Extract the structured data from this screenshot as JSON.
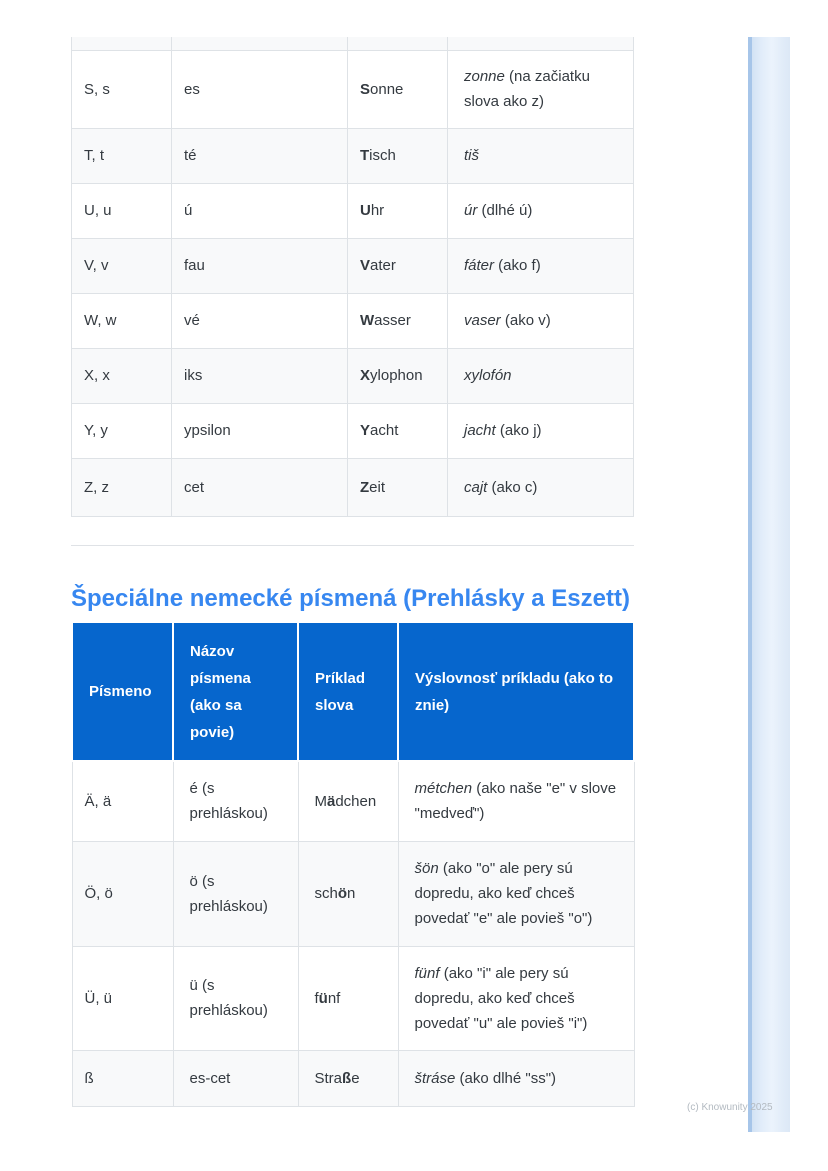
{
  "page": {
    "footer": "(c) Knowunity 2025",
    "colors": {
      "header_bg": "#0666cd",
      "heading_text": "#3787f0",
      "stripe_bg": "#f8f9fa",
      "table_border": "#dee2e6",
      "body_text": "#343a40",
      "page_edge_fill": "#e2edfa",
      "page_edge_line": "#a6c5e9"
    }
  },
  "special_section": {
    "heading": "Špeciálne nemecké písmená (Prehlásky a Eszett)"
  },
  "alphabet_table": {
    "rows": [
      [
        "S, s",
        "es",
        [
          {
            "t": "S",
            "b": 1
          },
          {
            "t": "onne"
          }
        ],
        [
          {
            "t": "zonne",
            "i": 1
          },
          {
            "t": " (na začiatku slova ako z)"
          }
        ]
      ],
      [
        "T, t",
        "té",
        [
          {
            "t": "T",
            "b": 1
          },
          {
            "t": "isch"
          }
        ],
        [
          {
            "t": "tiš",
            "i": 1
          }
        ]
      ],
      [
        "U, u",
        "ú",
        [
          {
            "t": "U",
            "b": 1
          },
          {
            "t": "hr"
          }
        ],
        [
          {
            "t": "úr",
            "i": 1
          },
          {
            "t": " (dlhé ú)"
          }
        ]
      ],
      [
        "V, v",
        "fau",
        [
          {
            "t": "V",
            "b": 1
          },
          {
            "t": "ater"
          }
        ],
        [
          {
            "t": "fáter",
            "i": 1
          },
          {
            "t": " (ako f)"
          }
        ]
      ],
      [
        "W, w",
        "vé",
        [
          {
            "t": "W",
            "b": 1
          },
          {
            "t": "asser"
          }
        ],
        [
          {
            "t": "vaser",
            "i": 1
          },
          {
            "t": " (ako v)"
          }
        ]
      ],
      [
        "X, x",
        "iks",
        [
          {
            "t": "X",
            "b": 1
          },
          {
            "t": "ylophon"
          }
        ],
        [
          {
            "t": "xylofón",
            "i": 1
          }
        ]
      ],
      [
        "Y, y",
        "ypsilon",
        [
          {
            "t": "Y",
            "b": 1
          },
          {
            "t": "acht"
          }
        ],
        [
          {
            "t": "jacht",
            "i": 1
          },
          {
            "t": " (ako j)"
          }
        ]
      ],
      [
        "Z, z",
        "cet",
        [
          {
            "t": "Z",
            "b": 1
          },
          {
            "t": "eit"
          }
        ],
        [
          {
            "t": "cajt",
            "i": 1
          },
          {
            "t": " (ako c)"
          }
        ]
      ]
    ]
  },
  "special_table": {
    "header": [
      "Písmeno",
      "Názov písmena (ako sa povie)",
      "Príklad slova",
      "Výslovnosť príkladu (ako to znie)"
    ],
    "rows": [
      [
        "Ä, ä",
        "é (s prehláskou)",
        [
          {
            "t": "M"
          },
          {
            "t": "ä",
            "b": 1
          },
          {
            "t": "dchen"
          }
        ],
        [
          {
            "t": "métchen",
            "i": 1
          },
          {
            "t": " (ako naše \"e\" v slove \"medveď\")"
          }
        ]
      ],
      [
        "Ö, ö",
        "ö (s prehláskou)",
        [
          {
            "t": "sch"
          },
          {
            "t": "ö",
            "b": 1
          },
          {
            "t": "n"
          }
        ],
        [
          {
            "t": "šön",
            "i": 1
          },
          {
            "t": " (ako \"o\" ale pery sú dopredu, ako keď chceš povedať \"e\" ale povieš \"o\")"
          }
        ]
      ],
      [
        "Ü, ü",
        "ü (s prehláskou)",
        [
          {
            "t": "f"
          },
          {
            "t": "ü",
            "b": 1
          },
          {
            "t": "nf"
          }
        ],
        [
          {
            "t": "fünf",
            "i": 1
          },
          {
            "t": " (ako \"i\" ale pery sú dopredu, ako keď chceš povedať \"u\" ale povieš \"i\")"
          }
        ]
      ],
      [
        "ß",
        "es-cet",
        [
          {
            "t": "Stra"
          },
          {
            "t": "ß",
            "b": 1
          },
          {
            "t": "e"
          }
        ],
        [
          {
            "t": "štráse",
            "i": 1
          },
          {
            "t": " (ako dlhé \"ss\")"
          }
        ]
      ]
    ]
  }
}
